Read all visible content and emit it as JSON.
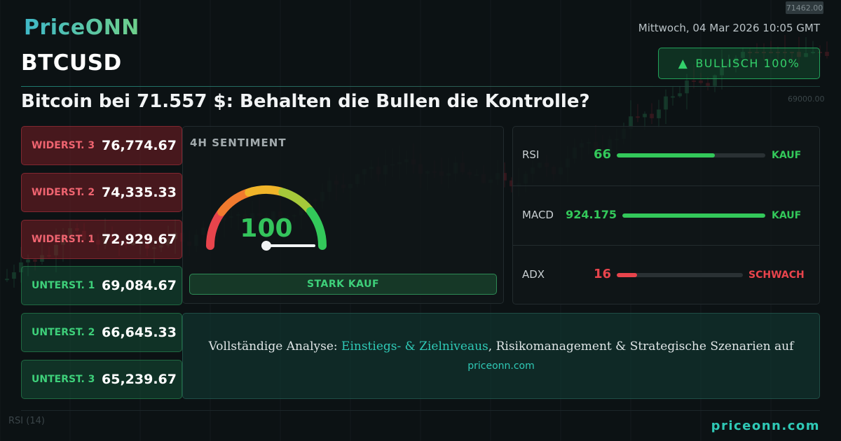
{
  "brand": {
    "logo_text": "PriceONN"
  },
  "header": {
    "datetime": "Mittwoch, 04 Mar 2026 10:05 GMT",
    "ticker": "BTCUSD",
    "bias_label": "BULLISCH 100%",
    "bias_icon": "triangle-up-icon"
  },
  "headline": "Bitcoin bei 71.557 $: Behalten die Bullen die Kontrolle?",
  "levels": [
    {
      "label": "WIDERST. 3",
      "value": "76,774.67",
      "kind": "resistance"
    },
    {
      "label": "WIDERST. 2",
      "value": "74,335.33",
      "kind": "resistance"
    },
    {
      "label": "WIDERST. 1",
      "value": "72,929.67",
      "kind": "resistance"
    },
    {
      "label": "UNTERST. 1",
      "value": "69,084.67",
      "kind": "support"
    },
    {
      "label": "UNTERST. 2",
      "value": "66,645.33",
      "kind": "support"
    },
    {
      "label": "UNTERST. 3",
      "value": "65,239.67",
      "kind": "support"
    }
  ],
  "sentiment": {
    "title": "4H SENTIMENT",
    "value": "100",
    "value_fraction": 1.0,
    "verdict": "STARK KAUF"
  },
  "indicators": [
    {
      "name": "RSI",
      "value": "66",
      "fill_fraction": 0.66,
      "signal": "KAUF",
      "color": "#33c85a"
    },
    {
      "name": "MACD",
      "value": "924.175",
      "fill_fraction": 1.0,
      "signal": "KAUF",
      "color": "#33c85a"
    },
    {
      "name": "ADX",
      "value": "16",
      "fill_fraction": 0.16,
      "signal": "SCHWACH",
      "color": "#e8444c"
    }
  ],
  "cta": {
    "prefix": "Vollständige Analyse: ",
    "link_text": "Einstiegs- & Zielniveaus",
    "suffix": ", Risikomanagement & Strategische Szenarien auf",
    "url": "priceonn.com"
  },
  "footer": {
    "url": "priceonn.com"
  },
  "background_chart": {
    "price_tag": "71462.00",
    "axis_label": "69000.00",
    "rsi_label": "RSI",
    "rsi_period": "(14)"
  },
  "colors": {
    "bullish": "#33d06a",
    "bearish": "#e8444c",
    "accent": "#2fc9b6",
    "background": "#0c1214"
  }
}
